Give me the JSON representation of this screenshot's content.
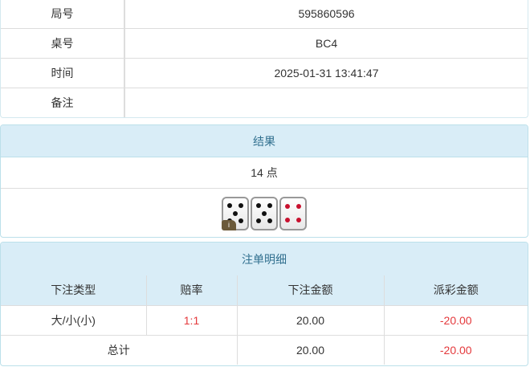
{
  "info": [
    {
      "label": "局号",
      "value": "595860596"
    },
    {
      "label": "桌号",
      "value": "BC4"
    },
    {
      "label": "时间",
      "value": "2025-01-31 13:41:47"
    },
    {
      "label": "备注",
      "value": ""
    }
  ],
  "result": {
    "title": "结果",
    "points": "14 点",
    "dice": [
      5,
      5,
      4
    ],
    "info_badge": "i"
  },
  "bets": {
    "title": "注单明细",
    "columns": [
      "下注类型",
      "赔率",
      "下注金额",
      "派彩金额"
    ],
    "rows": [
      {
        "type": "大/小(小)",
        "odds": "1:1",
        "amount": "20.00",
        "payout": "-20.00"
      }
    ],
    "total": {
      "label": "总计",
      "amount": "20.00",
      "payout": "-20.00"
    }
  },
  "colors": {
    "header_bg": "#d9edf7",
    "header_text": "#31708f",
    "negative": "#e4393c"
  }
}
